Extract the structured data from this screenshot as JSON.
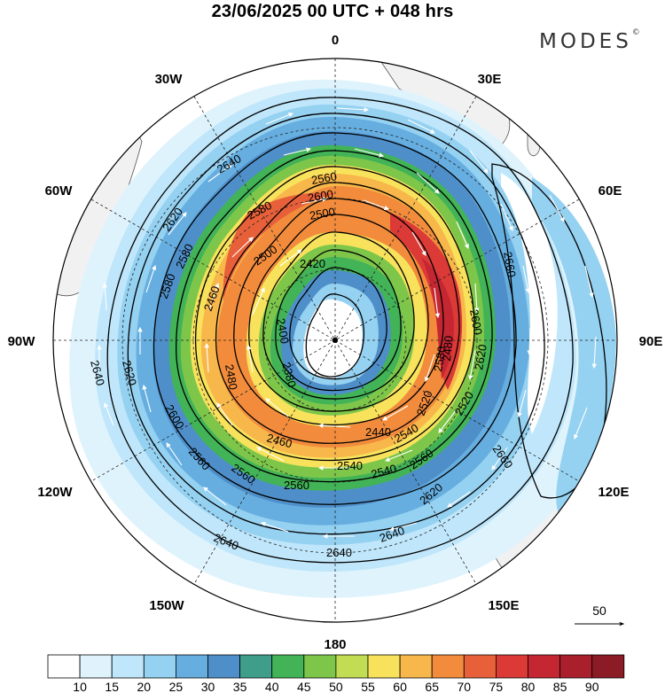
{
  "header": {
    "title": "23/06/2025  00 UTC  + 048 hrs",
    "brand": "MODES",
    "brand_mark": "©"
  },
  "map": {
    "projection": "south polar stereographic",
    "longitude_labels": [
      "0",
      "30E",
      "60E",
      "90E",
      "120E",
      "150E",
      "180",
      "150W",
      "120W",
      "90W",
      "60W",
      "30W"
    ],
    "contour_labels": [
      "2640",
      "2620",
      "2580",
      "2560",
      "2600",
      "2580",
      "2500",
      "2420",
      "2660",
      "2600",
      "2620",
      "2580",
      "2620",
      "2640",
      "2600",
      "2560",
      "2480",
      "2460",
      "2540",
      "2560",
      "2560",
      "2660",
      "2620",
      "2640",
      "2640",
      "2640",
      "2400",
      "2380",
      "2520",
      "2440",
      "2460",
      "2480",
      "2500",
      "2540",
      "2520",
      "2540",
      "2560",
      "2580"
    ],
    "vector_reference": {
      "value": "50",
      "unit_label": "50"
    }
  },
  "colorbar": {
    "labels": [
      "10",
      "15",
      "20",
      "25",
      "30",
      "35",
      "40",
      "45",
      "50",
      "55",
      "60",
      "65",
      "70",
      "75",
      "80",
      "85",
      "90"
    ],
    "colors": [
      "#ffffff",
      "#dff3fd",
      "#bfe6fa",
      "#95d1f1",
      "#66aee0",
      "#4f8fc9",
      "#3f9e8a",
      "#42b356",
      "#7dc64a",
      "#c2dc54",
      "#f8e25c",
      "#f7b74a",
      "#f28c3c",
      "#e8603a",
      "#db3a37",
      "#c52732",
      "#a91f2b",
      "#8b1b24"
    ]
  }
}
